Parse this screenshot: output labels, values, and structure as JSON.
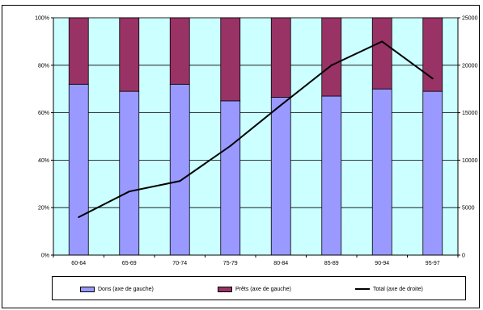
{
  "colors": {
    "dons": "#9999ff",
    "prets": "#993366",
    "plot_bg": "#ccffff",
    "total": "#000000"
  },
  "chart_data": {
    "type": "bar",
    "stacked": true,
    "categories": [
      "60-64",
      "65-69",
      "70-74",
      "75-79",
      "80-84",
      "85-89",
      "90-94",
      "95-97"
    ],
    "series": [
      {
        "name": "Dons (axe de gauche)",
        "type": "bar",
        "axis": "left",
        "values": [
          72,
          69,
          72,
          65,
          66.5,
          67,
          70,
          69
        ]
      },
      {
        "name": "Prêts (axe de gauche)",
        "type": "bar",
        "axis": "left",
        "values": [
          28,
          31,
          28,
          35,
          33.5,
          33,
          30,
          31
        ]
      },
      {
        "name": "Total  (axe de droite)",
        "type": "line",
        "axis": "right",
        "values": [
          4000,
          6700,
          7800,
          11500,
          15800,
          20000,
          22500,
          18600
        ]
      }
    ],
    "left_axis": {
      "ticks": [
        "0%",
        "20%",
        "40%",
        "60%",
        "80%",
        "100%"
      ],
      "ylim": [
        0,
        100
      ]
    },
    "right_axis": {
      "ticks": [
        "0",
        "5000",
        "10000",
        "15000",
        "20000",
        "25000"
      ],
      "ylim": [
        0,
        25000
      ]
    },
    "grid": true,
    "legend_position": "bottom"
  }
}
